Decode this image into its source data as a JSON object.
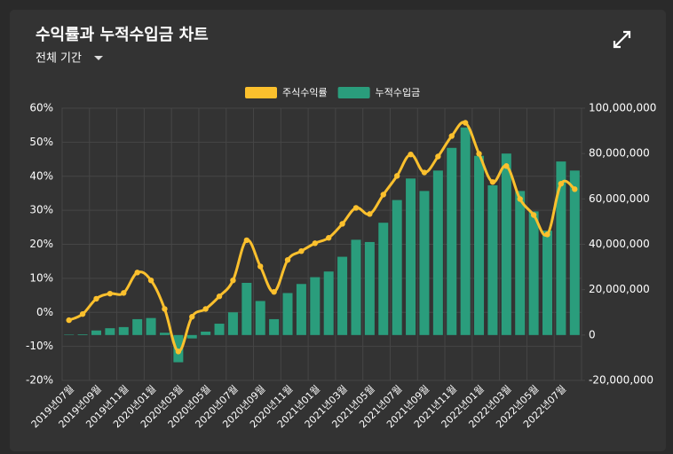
{
  "chart_data": {
    "type": "combo",
    "title": "수익률과 누적수입금 차트",
    "period": "전체 기간",
    "categories": [
      "2019년07월",
      null,
      "2019년09월",
      null,
      "2019년11월",
      null,
      "2020년01월",
      null,
      "2020년03월",
      null,
      "2020년05월",
      null,
      "2020년07월",
      null,
      "2020년09월",
      null,
      "2020년11월",
      null,
      "2021년01월",
      null,
      "2021년03월",
      null,
      "2021년05월",
      null,
      "2021년07월",
      null,
      "2021년09월",
      null,
      "2021년11월",
      null,
      "2022년01월",
      null,
      "2022년03월",
      null,
      "2022년05월",
      null,
      "2022년07월",
      null
    ],
    "series": [
      {
        "name": "주식수익률",
        "type": "line",
        "axis": "y",
        "color": "#fbc02d",
        "values": [
          -2.3,
          -0.5,
          4,
          5.5,
          5.7,
          11.7,
          9.4,
          1,
          -11.5,
          -1.3,
          1,
          4.7,
          9.4,
          21.2,
          13.5,
          6,
          15.4,
          18,
          20.3,
          21.9,
          26,
          30.7,
          28.9,
          34.6,
          40.1,
          46.4,
          41.1,
          45.8,
          51.8,
          55.7,
          46.6,
          38.3,
          43,
          33.3,
          28.6,
          22.9,
          37.8,
          36.2
        ]
      },
      {
        "name": "누적수입금",
        "type": "bar",
        "axis": "y2",
        "color": "#2a9d7c",
        "values": [
          200000,
          300000,
          2000000,
          3000000,
          3500000,
          7000000,
          7500000,
          1000000,
          -12000000,
          -1500000,
          1500000,
          5000000,
          10000000,
          23000000,
          15000000,
          7000000,
          18500000,
          22500000,
          25500000,
          28000000,
          34500000,
          42000000,
          41000000,
          49500000,
          59500000,
          69000000,
          63500000,
          72500000,
          82500000,
          91500000,
          79000000,
          66000000,
          80000000,
          63500000,
          54500000,
          46000000,
          76500000,
          72500000
        ]
      }
    ],
    "ylim": [
      -20,
      60
    ],
    "yticks": [
      {
        "value": -20,
        "label": "-20%"
      },
      {
        "value": -10,
        "label": "-10%"
      },
      {
        "value": 0,
        "label": "0%"
      },
      {
        "value": 10,
        "label": "10%"
      },
      {
        "value": 20,
        "label": "20%"
      },
      {
        "value": 30,
        "label": "30%"
      },
      {
        "value": 40,
        "label": "40%"
      },
      {
        "value": 50,
        "label": "50%"
      },
      {
        "value": 60,
        "label": "60%"
      }
    ],
    "y2lim": [
      -20000000,
      100000000
    ],
    "y2ticks": [
      {
        "value": -20000000,
        "label": "-20,000,000"
      },
      0,
      {
        "value": 20000000,
        "label": "20,000,000"
      },
      {
        "value": 40000000,
        "label": "40,000,000"
      },
      {
        "value": 60000000,
        "label": "60,000,000"
      },
      {
        "value": 80000000,
        "label": "80,000,000"
      },
      {
        "value": 100000000,
        "label": "100,000,000"
      }
    ],
    "grid": true,
    "legend": "top"
  }
}
